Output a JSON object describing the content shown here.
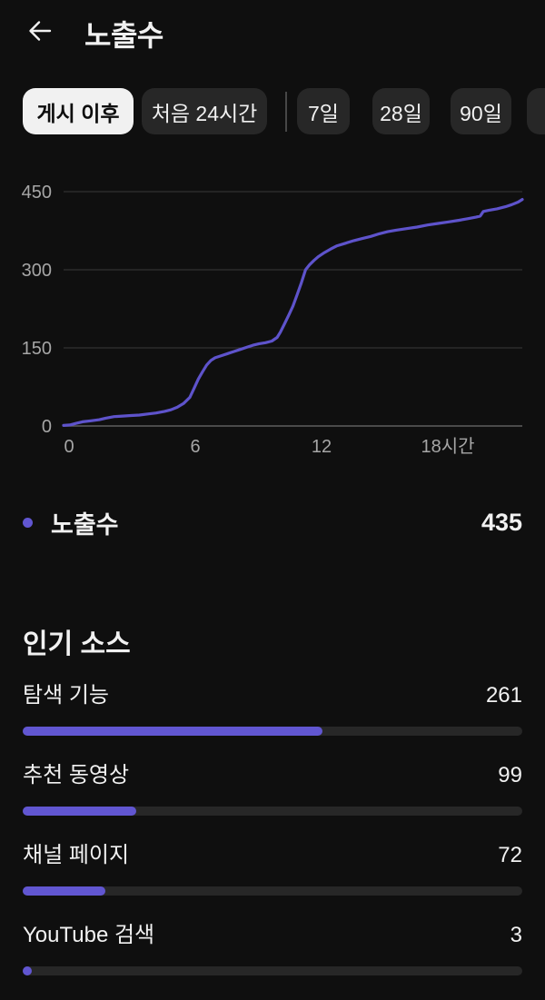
{
  "theme": {
    "background": "#0f0f0f",
    "text_primary": "#f1f1f1",
    "text_secondary": "#a6a6a6",
    "accent": "#6156d1",
    "line_color": "#5e53cb",
    "grid_color": "#3a3a3a",
    "axis_baseline_color": "#5f5f5f",
    "chip_bg": "#272727",
    "chip_selected_bg": "#f1f1f1",
    "chip_selected_text": "#0d0d0d",
    "bar_track": "#272727",
    "divider": "#474747"
  },
  "header": {
    "title": "노출수",
    "back_icon": "arrow-left"
  },
  "filters": {
    "chips": [
      {
        "label": "게시 이후",
        "selected": true
      },
      {
        "label": "처음 24시간",
        "selected": false
      },
      {
        "label": "7일",
        "selected": false
      },
      {
        "label": "28일",
        "selected": false
      },
      {
        "label": "90일",
        "selected": false
      },
      {
        "label": "",
        "selected": false
      }
    ]
  },
  "chart_data": {
    "type": "line",
    "title": "노출수",
    "legend_position": "below",
    "grid": true,
    "x_axis": {
      "unit": "시간",
      "range_hours": [
        0,
        21.8
      ],
      "ticks": [
        {
          "hour": 0,
          "label": "0"
        },
        {
          "hour": 6,
          "label": "6"
        },
        {
          "hour": 12,
          "label": "12"
        },
        {
          "hour": 18,
          "label": "18시간"
        }
      ]
    },
    "y_axis": {
      "ticks": [
        0,
        150,
        300,
        450
      ],
      "max": 450
    },
    "series": [
      {
        "name": "노출수",
        "last_value": 435,
        "points": [
          [
            0,
            1
          ],
          [
            0.3,
            2
          ],
          [
            0.6,
            5
          ],
          [
            0.9,
            8
          ],
          [
            1.3,
            10
          ],
          [
            1.7,
            12
          ],
          [
            2.0,
            15
          ],
          [
            2.4,
            18
          ],
          [
            2.8,
            19
          ],
          [
            3.2,
            20
          ],
          [
            3.6,
            21
          ],
          [
            4.0,
            23
          ],
          [
            4.4,
            25
          ],
          [
            4.8,
            28
          ],
          [
            5.1,
            31
          ],
          [
            5.4,
            36
          ],
          [
            5.7,
            43
          ],
          [
            6.0,
            55
          ],
          [
            6.2,
            72
          ],
          [
            6.4,
            90
          ],
          [
            6.6,
            104
          ],
          [
            6.8,
            117
          ],
          [
            7.0,
            126
          ],
          [
            7.2,
            131
          ],
          [
            7.5,
            135
          ],
          [
            7.8,
            139
          ],
          [
            8.1,
            143
          ],
          [
            8.4,
            147
          ],
          [
            8.7,
            151
          ],
          [
            9.0,
            155
          ],
          [
            9.3,
            158
          ],
          [
            9.6,
            160
          ],
          [
            9.9,
            163
          ],
          [
            10.15,
            170
          ],
          [
            10.3,
            180
          ],
          [
            10.5,
            196
          ],
          [
            10.7,
            213
          ],
          [
            10.9,
            230
          ],
          [
            11.1,
            252
          ],
          [
            11.3,
            275
          ],
          [
            11.5,
            300
          ],
          [
            11.7,
            310
          ],
          [
            11.9,
            318
          ],
          [
            12.1,
            325
          ],
          [
            12.4,
            333
          ],
          [
            12.7,
            340
          ],
          [
            13.0,
            346
          ],
          [
            13.4,
            351
          ],
          [
            13.8,
            356
          ],
          [
            14.2,
            360
          ],
          [
            14.6,
            364
          ],
          [
            15.0,
            369
          ],
          [
            15.4,
            373
          ],
          [
            15.8,
            376
          ],
          [
            16.3,
            379
          ],
          [
            16.8,
            382
          ],
          [
            17.3,
            386
          ],
          [
            17.8,
            389
          ],
          [
            18.3,
            392
          ],
          [
            18.8,
            395
          ],
          [
            19.2,
            398
          ],
          [
            19.6,
            401
          ],
          [
            19.8,
            403
          ],
          [
            19.95,
            412
          ],
          [
            20.2,
            414
          ],
          [
            20.6,
            417
          ],
          [
            21.0,
            421
          ],
          [
            21.3,
            425
          ],
          [
            21.6,
            430
          ],
          [
            21.8,
            435
          ]
        ]
      }
    ]
  },
  "legend": {
    "label": "노출수",
    "value": 435
  },
  "top_sources": {
    "title": "인기 소스",
    "items": [
      {
        "label": "탐색 기능",
        "value": 261
      },
      {
        "label": "추천 동영상",
        "value": 99
      },
      {
        "label": "채널 페이지",
        "value": 72
      },
      {
        "label": "YouTube 검색",
        "value": 3
      }
    ]
  }
}
